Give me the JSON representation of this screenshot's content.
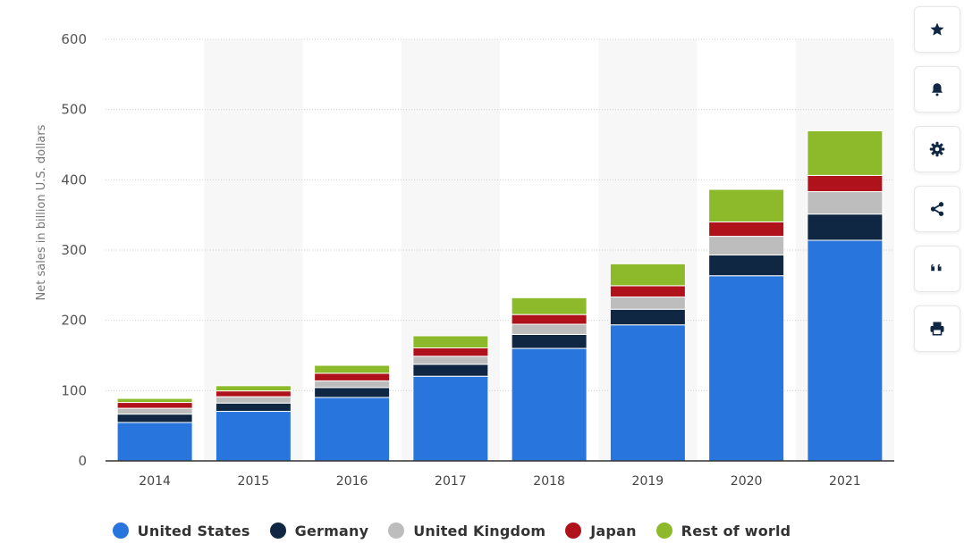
{
  "colors": {
    "United States": "#2876dd",
    "Germany": "#0f2742",
    "United Kingdom": "#bdbdbd",
    "Japan": "#b0121b",
    "Rest of world": "#8cba2b",
    "grid": "#cfcfcf",
    "band": "#f7f7f7",
    "axis": "#333333"
  },
  "toolbar": [
    {
      "name": "star-icon"
    },
    {
      "name": "bell-icon"
    },
    {
      "name": "gear-icon"
    },
    {
      "name": "share-icon"
    },
    {
      "name": "quote-icon"
    },
    {
      "name": "print-icon"
    }
  ],
  "chart_data": {
    "type": "bar",
    "stacked": true,
    "title": "",
    "xlabel": "",
    "ylabel": "Net sales in billion U.S. dollars",
    "ylim": [
      0,
      600
    ],
    "yticks": [
      0,
      100,
      200,
      300,
      400,
      500,
      600
    ],
    "categories": [
      "2014",
      "2015",
      "2016",
      "2017",
      "2018",
      "2019",
      "2020",
      "2021"
    ],
    "grid": true,
    "legend_position": "bottom",
    "series": [
      {
        "name": "United States",
        "values": [
          54.7,
          70.5,
          90.3,
          120.5,
          160.1,
          193.6,
          263.5,
          314.0
        ]
      },
      {
        "name": "Germany",
        "values": [
          11.9,
          11.8,
          14.1,
          17.0,
          19.9,
          22.2,
          29.6,
          37.3
        ]
      },
      {
        "name": "United Kingdom",
        "values": [
          8.3,
          9.0,
          9.5,
          11.4,
          14.5,
          17.5,
          26.5,
          31.9
        ]
      },
      {
        "name": "Japan",
        "values": [
          8.3,
          8.3,
          10.8,
          11.9,
          13.8,
          16.0,
          20.5,
          23.1
        ]
      },
      {
        "name": "Rest of world",
        "values": [
          5.7,
          7.4,
          11.3,
          17.2,
          23.9,
          31.2,
          46.3,
          63.5
        ]
      }
    ]
  }
}
